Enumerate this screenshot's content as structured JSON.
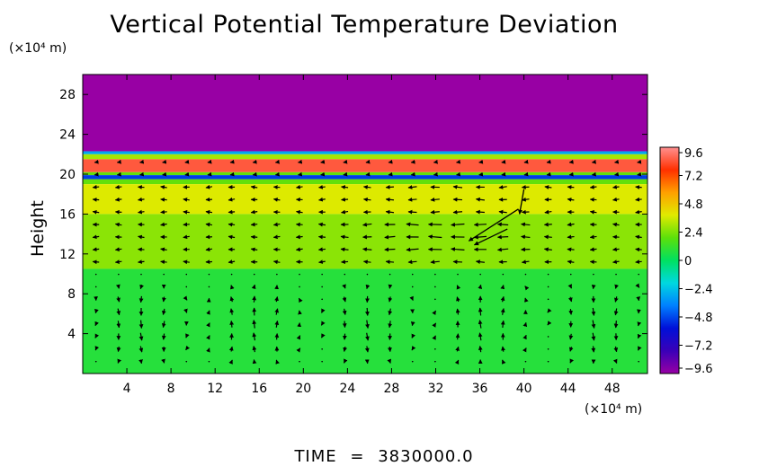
{
  "chart_data": {
    "type": "heatmap",
    "title": "Vertical Potential Temperature Deviation",
    "ylabel": "Height",
    "y_unit": "(×10⁴ m)",
    "x_unit": "(×10⁴ m)",
    "xlim": [
      0,
      51.2
    ],
    "ylim": [
      0,
      30
    ],
    "x_ticks": [
      "4",
      "8",
      "12",
      "16",
      "20",
      "24",
      "28",
      "32",
      "36",
      "40",
      "44",
      "48"
    ],
    "y_ticks": [
      "4",
      "8",
      "12",
      "16",
      "20",
      "24",
      "28"
    ],
    "colorbar": {
      "range": [
        -9.6,
        9.6
      ],
      "tick_labels": [
        "9.6",
        "7.2",
        "4.8",
        "2.4",
        "0",
        "−2.4",
        "−4.8",
        "−7.2",
        "−9.6"
      ]
    },
    "field_bands": [
      {
        "y_from": 22.3,
        "y_to": 30,
        "value": -9.6
      },
      {
        "y_from": 22.0,
        "y_to": 22.3,
        "value": -3
      },
      {
        "y_from": 21.5,
        "y_to": 22.0,
        "value": 3
      },
      {
        "y_from": 20.2,
        "y_to": 21.5,
        "value": 8.5
      },
      {
        "y_from": 19.9,
        "y_to": 20.2,
        "value": 2
      },
      {
        "y_from": 19.5,
        "y_to": 19.9,
        "value": -5
      },
      {
        "y_from": 19.0,
        "y_to": 19.5,
        "value": 2
      },
      {
        "y_from": 16.0,
        "y_to": 19.0,
        "value": 3.8
      },
      {
        "y_from": 10.5,
        "y_to": 16.0,
        "value": 2.6
      },
      {
        "y_from": 0,
        "y_to": 10.5,
        "value": 0.8
      }
    ],
    "vector_overlay": "wind"
  },
  "footer": {
    "time_label": "TIME",
    "equals": "=",
    "time_value": "3830000.0"
  }
}
